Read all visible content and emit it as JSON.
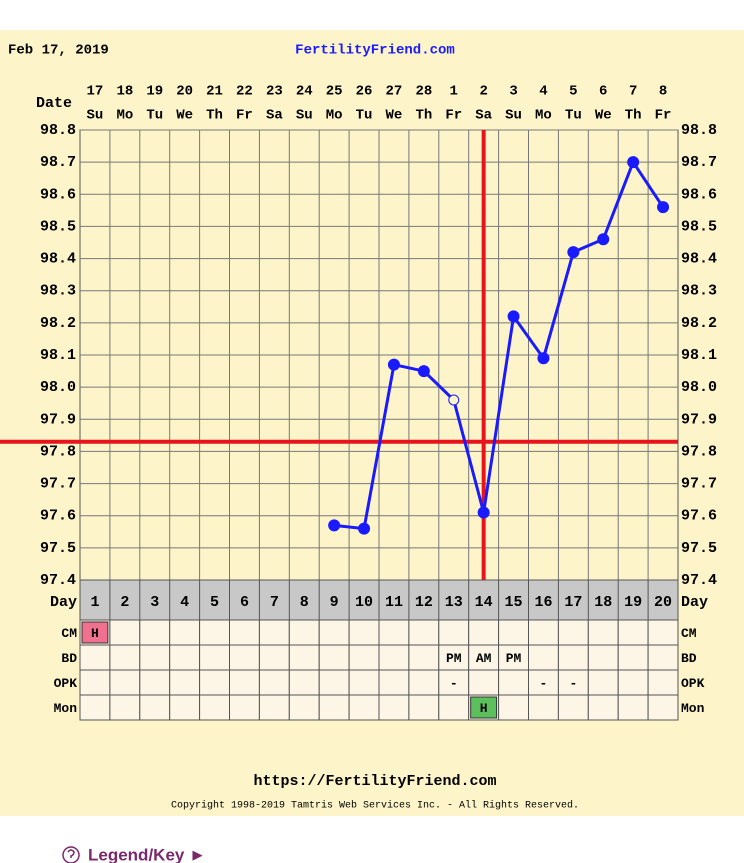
{
  "chart_data": {
    "type": "line",
    "date_header": "Feb 17, 2019",
    "title": "FertilityFriend.com",
    "date_label": "Date",
    "categories": [
      "17",
      "18",
      "19",
      "20",
      "21",
      "22",
      "23",
      "24",
      "25",
      "26",
      "27",
      "28",
      "1",
      "2",
      "3",
      "4",
      "5",
      "6",
      "7",
      "8"
    ],
    "weekdays": [
      "Su",
      "Mo",
      "Tu",
      "We",
      "Th",
      "Fr",
      "Sa",
      "Su",
      "Mo",
      "Tu",
      "We",
      "Th",
      "Fr",
      "Sa",
      "Su",
      "Mo",
      "Tu",
      "We",
      "Th",
      "Fr"
    ],
    "series": [
      {
        "color": "#1a1aff",
        "values": [
          null,
          null,
          null,
          null,
          null,
          null,
          null,
          null,
          97.57,
          97.56,
          98.07,
          98.05,
          97.96,
          97.61,
          98.22,
          98.09,
          98.42,
          98.46,
          98.7,
          98.56
        ],
        "markers": [
          null,
          null,
          null,
          null,
          null,
          null,
          null,
          null,
          "filled",
          "filled",
          "filled",
          "filled",
          "open",
          "filled",
          "filled",
          "filled",
          "filled",
          "filled",
          "filled",
          "filled"
        ]
      }
    ],
    "ylim": [
      97.4,
      98.8
    ],
    "yticks": [
      97.4,
      97.5,
      97.6,
      97.7,
      97.8,
      97.9,
      {
        "value": 98,
        "label": "98.0"
      },
      98.1,
      98.2,
      98.3,
      98.4,
      98.5,
      98.6,
      98.7,
      98.8
    ],
    "grid": true,
    "coverline": 97.83,
    "ovulation_day": 14,
    "reference_color": "#e8141b",
    "day_label": "Day",
    "cycle_days": [
      "1",
      "2",
      "3",
      "4",
      "5",
      "6",
      "7",
      "8",
      "9",
      "10",
      "11",
      "12",
      "13",
      "14",
      "15",
      "16",
      "17",
      "18",
      "19",
      "20"
    ],
    "rows": [
      {
        "label": "CM",
        "cells": [
          "H",
          null,
          null,
          null,
          null,
          null,
          null,
          null,
          null,
          null,
          null,
          null,
          null,
          null,
          null,
          null,
          null,
          null,
          null,
          null
        ],
        "colors": [
          "#f07090",
          null,
          null,
          null,
          null,
          null,
          null,
          null,
          null,
          null,
          null,
          null,
          null,
          null,
          null,
          null,
          null,
          null,
          null,
          null
        ]
      },
      {
        "label": "BD",
        "cells": [
          null,
          null,
          null,
          null,
          null,
          null,
          null,
          null,
          null,
          null,
          null,
          null,
          "PM",
          "AM",
          "PM",
          null,
          null,
          null,
          null,
          null
        ],
        "colors": [
          null,
          null,
          null,
          null,
          null,
          null,
          null,
          null,
          null,
          null,
          null,
          null,
          null,
          null,
          null,
          null,
          null,
          null,
          null,
          null
        ]
      },
      {
        "label": "OPK",
        "cells": [
          null,
          null,
          null,
          null,
          null,
          null,
          null,
          null,
          null,
          null,
          null,
          null,
          "-",
          null,
          null,
          "-",
          "-",
          null,
          null,
          null
        ],
        "colors": [
          null,
          null,
          null,
          null,
          null,
          null,
          null,
          null,
          null,
          null,
          null,
          null,
          null,
          null,
          null,
          null,
          null,
          null,
          null,
          null
        ]
      },
      {
        "label": "Mon",
        "cells": [
          null,
          null,
          null,
          null,
          null,
          null,
          null,
          null,
          null,
          null,
          null,
          null,
          null,
          "H",
          null,
          null,
          null,
          null,
          null,
          null
        ],
        "colors": [
          null,
          null,
          null,
          null,
          null,
          null,
          null,
          null,
          null,
          null,
          null,
          null,
          null,
          "#5cc05c",
          null,
          null,
          null,
          null,
          null,
          null
        ]
      }
    ],
    "footer_url": "https://FertilityFriend.com",
    "copyright": "Copyright 1998-2019 Tamtris Web Services Inc. - All Rights Reserved.",
    "legend_link": "Legend/Key ►"
  }
}
